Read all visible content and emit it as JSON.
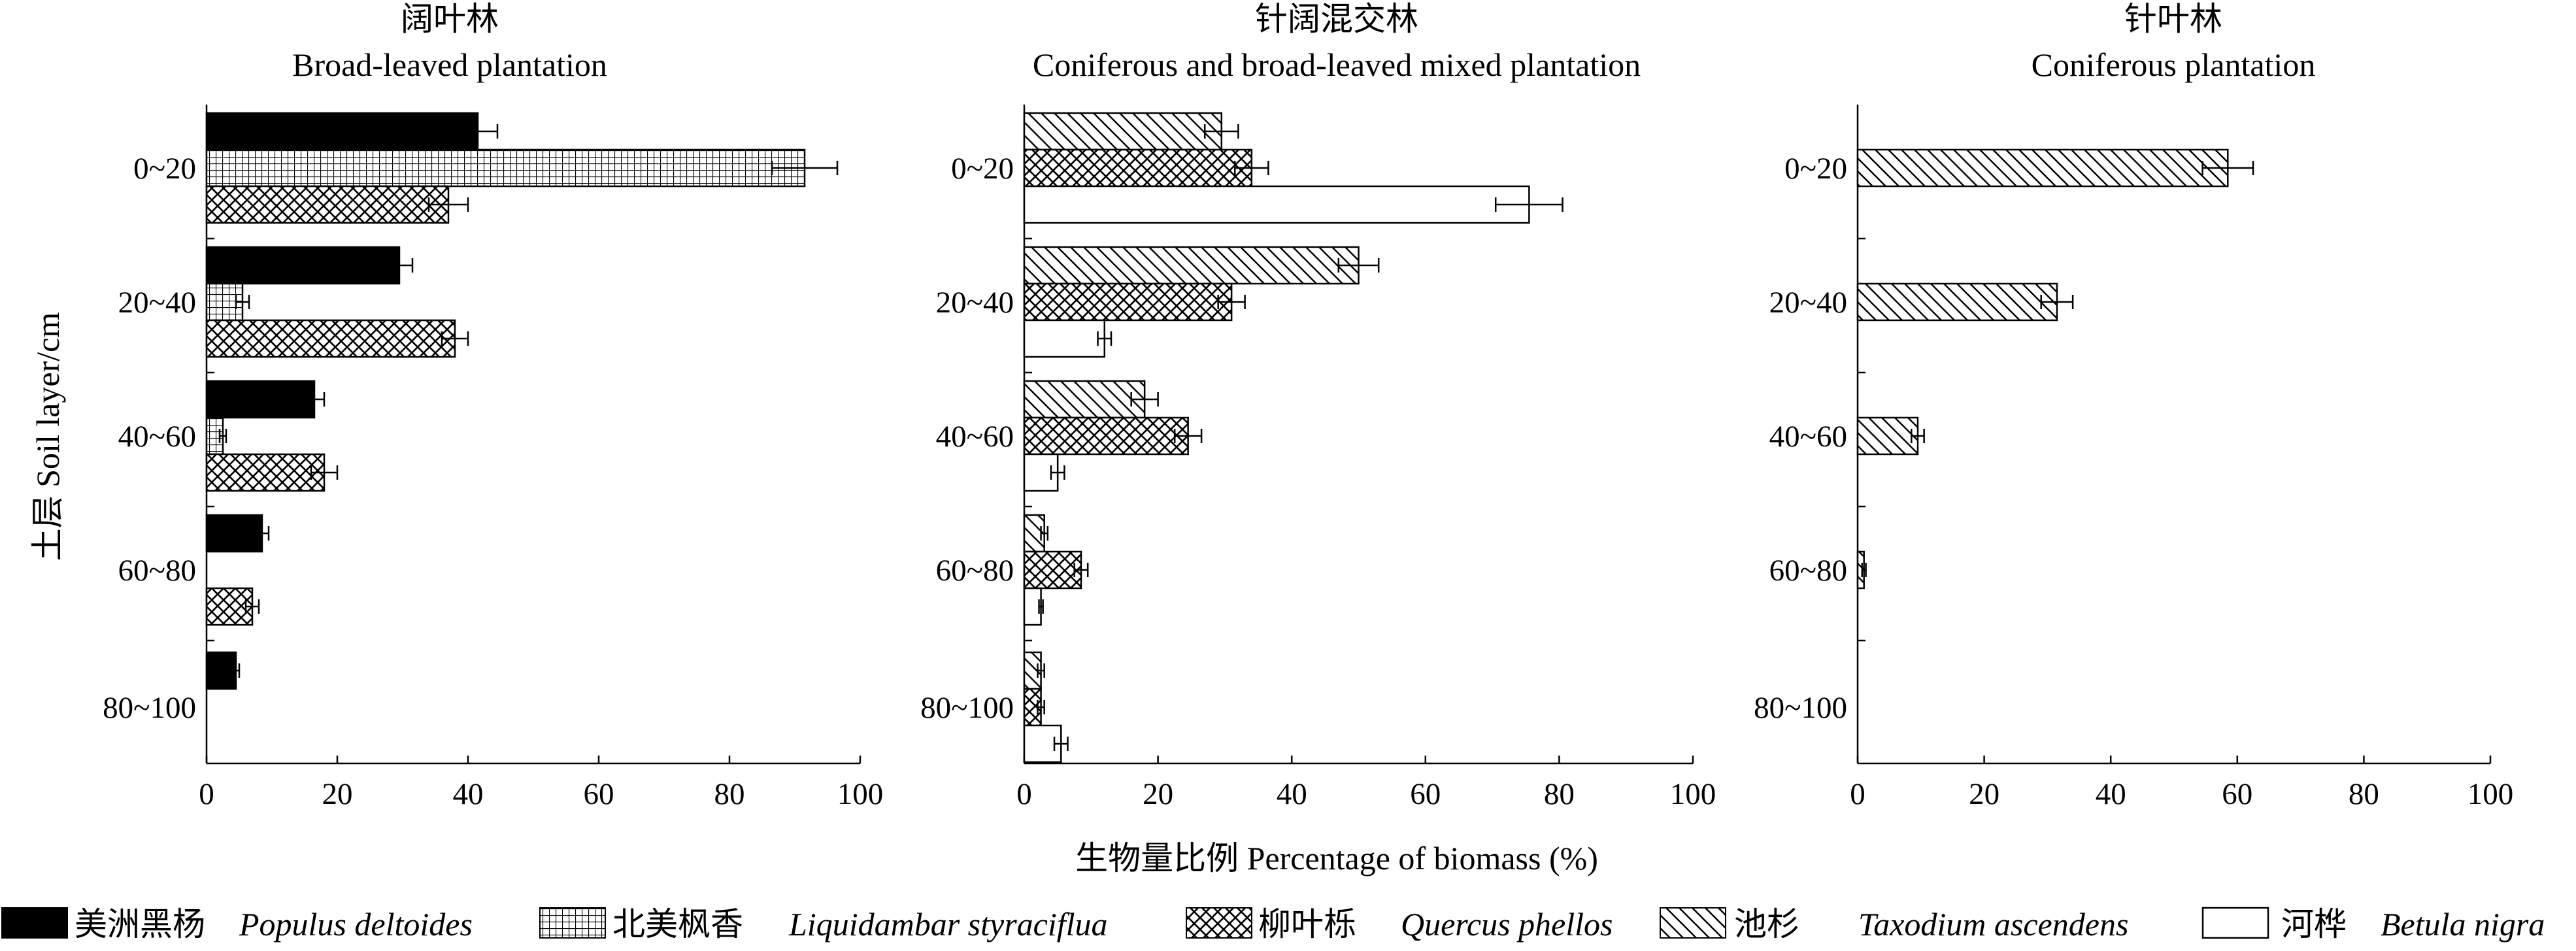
{
  "chart_data": {
    "type": "bar",
    "orientation": "horizontal",
    "categories": [
      "0~20",
      "20~40",
      "40~60",
      "60~80",
      "80~100"
    ],
    "xlim": [
      0,
      100
    ],
    "xticks": [
      "0",
      "20",
      "40",
      "60",
      "80",
      "100"
    ],
    "xlabel": "生物量比例 Percentage of biomass (%)",
    "ylabel": "土层 Soil layer/cm",
    "grid": false,
    "legend_position": "bottom",
    "legend": [
      {
        "cn": "美洲黑杨",
        "latin": "Populus deltoides",
        "pattern": "solid-black"
      },
      {
        "cn": "北美枫香",
        "latin": "Liquidambar styraciflua",
        "pattern": "grid"
      },
      {
        "cn": "柳叶栎",
        "latin": "Quercus phellos",
        "pattern": "cross-hatch"
      },
      {
        "cn": "池杉",
        "latin": "Taxodium ascendens",
        "pattern": "diagonal-hatch"
      },
      {
        "cn": "河桦",
        "latin": "Betula nigra",
        "pattern": "white"
      }
    ],
    "panels": [
      {
        "title_cn": "阔叶林",
        "title_en": "Broad-leaved plantation",
        "series": [
          {
            "species": "Populus deltoides",
            "pattern": "solid-black",
            "values": [
              41.5,
              29.5,
              16.5,
              8.5,
              4.5
            ],
            "errors": [
              3,
              2,
              1.5,
              1,
              0.5
            ]
          },
          {
            "species": "Liquidambar styraciflua",
            "pattern": "grid",
            "values": [
              91.5,
              5.5,
              2.5,
              null,
              null
            ],
            "errors": [
              5,
              1,
              0.5,
              null,
              null
            ]
          },
          {
            "species": "Quercus phellos",
            "pattern": "cross-hatch",
            "values": [
              37,
              38,
              18,
              7,
              null
            ],
            "errors": [
              3,
              2,
              2,
              1,
              null
            ]
          }
        ]
      },
      {
        "title_cn": "针阔混交林",
        "title_en": "Coniferous and broad-leaved mixed plantation",
        "series": [
          {
            "species": "Taxodium ascendens",
            "pattern": "diagonal-hatch",
            "values": [
              29.5,
              50,
              18,
              3,
              2.5
            ],
            "errors": [
              2.5,
              3,
              2,
              0.5,
              0.5
            ]
          },
          {
            "species": "Quercus phellos",
            "pattern": "cross-hatch",
            "values": [
              34,
              31,
              24.5,
              8.5,
              2.5
            ],
            "errors": [
              2.5,
              2,
              2,
              1,
              0.5
            ]
          },
          {
            "species": "Betula nigra",
            "pattern": "white",
            "values": [
              75.5,
              12,
              5,
              2.5,
              5.5
            ],
            "errors": [
              5,
              1,
              1,
              0.3,
              1
            ]
          }
        ]
      },
      {
        "title_cn": "针叶林",
        "title_en": "Coniferous plantation",
        "series": [
          {
            "species": "Taxodium ascendens",
            "pattern": "diagonal-hatch",
            "values": [
              58.5,
              31.5,
              9.5,
              1,
              null
            ],
            "errors": [
              4,
              2.5,
              1,
              0.3,
              null
            ]
          }
        ]
      }
    ]
  },
  "colors": {
    "ink": "#000000",
    "background": "#ffffff"
  }
}
